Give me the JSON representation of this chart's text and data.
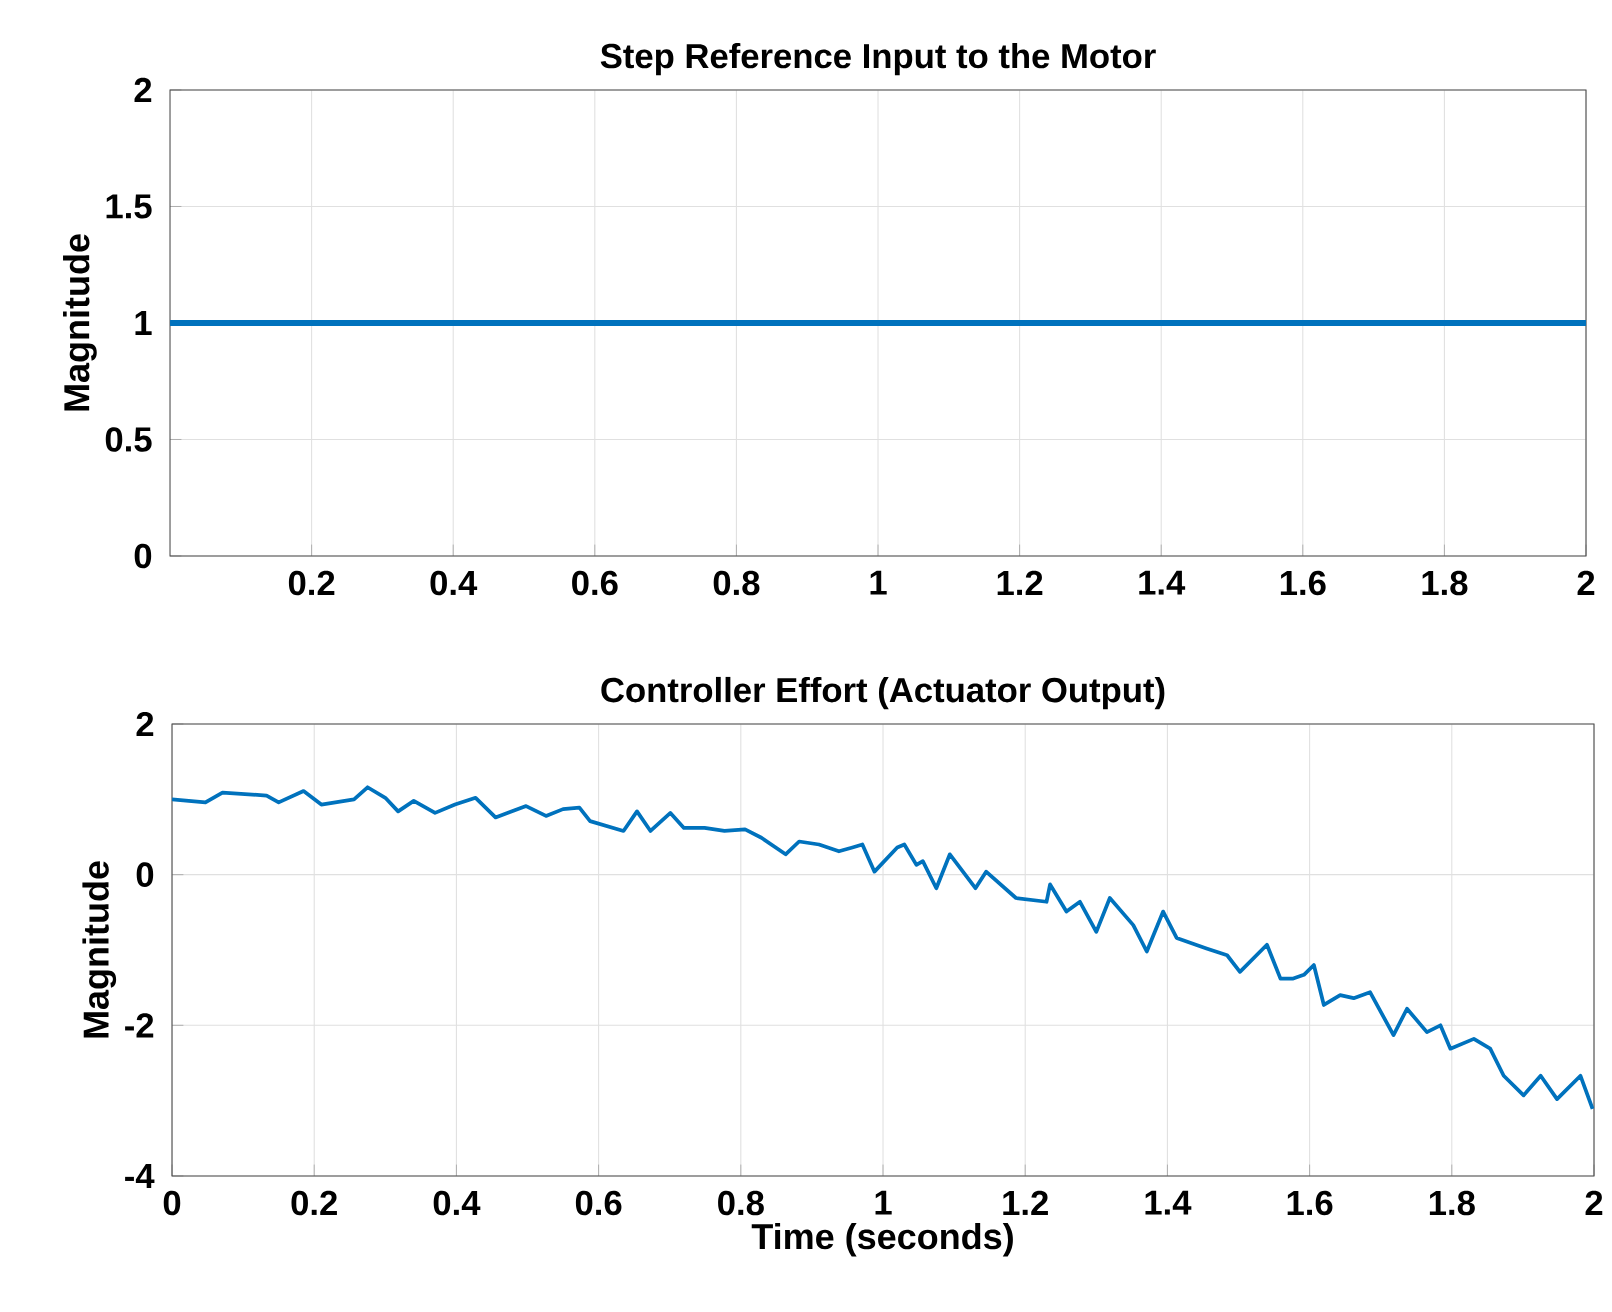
{
  "chart_data": [
    {
      "type": "line",
      "title": "Step Reference Input to the Motor",
      "ylabel": "Magnitude",
      "x": [
        0,
        2
      ],
      "series": [
        {
          "color": "#0072bd",
          "values": [
            1,
            1
          ]
        }
      ],
      "xlim": [
        0,
        2
      ],
      "ylim": [
        0,
        2
      ],
      "xticks": [
        0.2,
        0.4,
        0.6,
        0.8,
        1,
        1.2,
        1.4,
        1.6,
        1.8,
        2
      ],
      "yticks": [
        0,
        0.5,
        1,
        1.5,
        2
      ],
      "grid": true
    },
    {
      "type": "line",
      "title": "Controller Effort (Actuator Output)",
      "xlabel": "Time (seconds)",
      "ylabel": "Magnitude",
      "x": [
        0,
        0.047,
        0.071,
        0.133,
        0.15,
        0.185,
        0.21,
        0.256,
        0.275,
        0.3,
        0.318,
        0.34,
        0.37,
        0.398,
        0.427,
        0.455,
        0.498,
        0.526,
        0.55,
        0.573,
        0.588,
        0.635,
        0.654,
        0.673,
        0.701,
        0.72,
        0.749,
        0.777,
        0.806,
        0.829,
        0.863,
        0.882,
        0.91,
        0.938,
        0.957,
        0.971,
        0.988,
        1.02,
        1.03,
        1.047,
        1.056,
        1.075,
        1.094,
        1.13,
        1.145,
        1.187,
        1.23,
        1.235,
        1.258,
        1.277,
        1.3,
        1.319,
        1.352,
        1.371,
        1.394,
        1.413,
        1.455,
        1.484,
        1.502,
        1.521,
        1.54,
        1.559,
        1.577,
        1.592,
        1.606,
        1.62,
        1.643,
        1.662,
        1.685,
        1.718,
        1.737,
        1.765,
        1.784,
        1.798,
        1.831,
        1.854,
        1.873,
        1.901,
        1.925,
        1.948,
        1.981,
        1.998
      ],
      "series": [
        {
          "color": "#0072bd",
          "values": [
            1.0,
            0.96,
            1.09,
            1.05,
            0.96,
            1.11,
            0.93,
            1.0,
            1.16,
            1.02,
            0.84,
            0.98,
            0.82,
            0.93,
            1.02,
            0.76,
            0.91,
            0.78,
            0.87,
            0.89,
            0.71,
            0.58,
            0.84,
            0.58,
            0.82,
            0.62,
            0.62,
            0.58,
            0.6,
            0.49,
            0.27,
            0.44,
            0.4,
            0.31,
            0.36,
            0.4,
            0.04,
            0.36,
            0.4,
            0.13,
            0.18,
            -0.18,
            0.27,
            -0.18,
            0.04,
            -0.31,
            -0.36,
            -0.13,
            -0.49,
            -0.36,
            -0.76,
            -0.31,
            -0.67,
            -1.02,
            -0.49,
            -0.84,
            -0.98,
            -1.07,
            -1.29,
            -1.11,
            -0.93,
            -1.38,
            -1.38,
            -1.33,
            -1.2,
            -1.73,
            -1.6,
            -1.64,
            -1.56,
            -2.13,
            -1.78,
            -2.09,
            -2.0,
            -2.31,
            -2.18,
            -2.31,
            -2.67,
            -2.93,
            -2.67,
            -2.98,
            -2.67,
            -3.11
          ]
        }
      ],
      "xlim": [
        0,
        2
      ],
      "ylim": [
        -4,
        2
      ],
      "xticks": [
        0,
        0.2,
        0.4,
        0.6,
        0.8,
        1,
        1.2,
        1.4,
        1.6,
        1.8,
        2
      ],
      "yticks": [
        -4,
        -2,
        0,
        2
      ],
      "grid": true
    }
  ]
}
